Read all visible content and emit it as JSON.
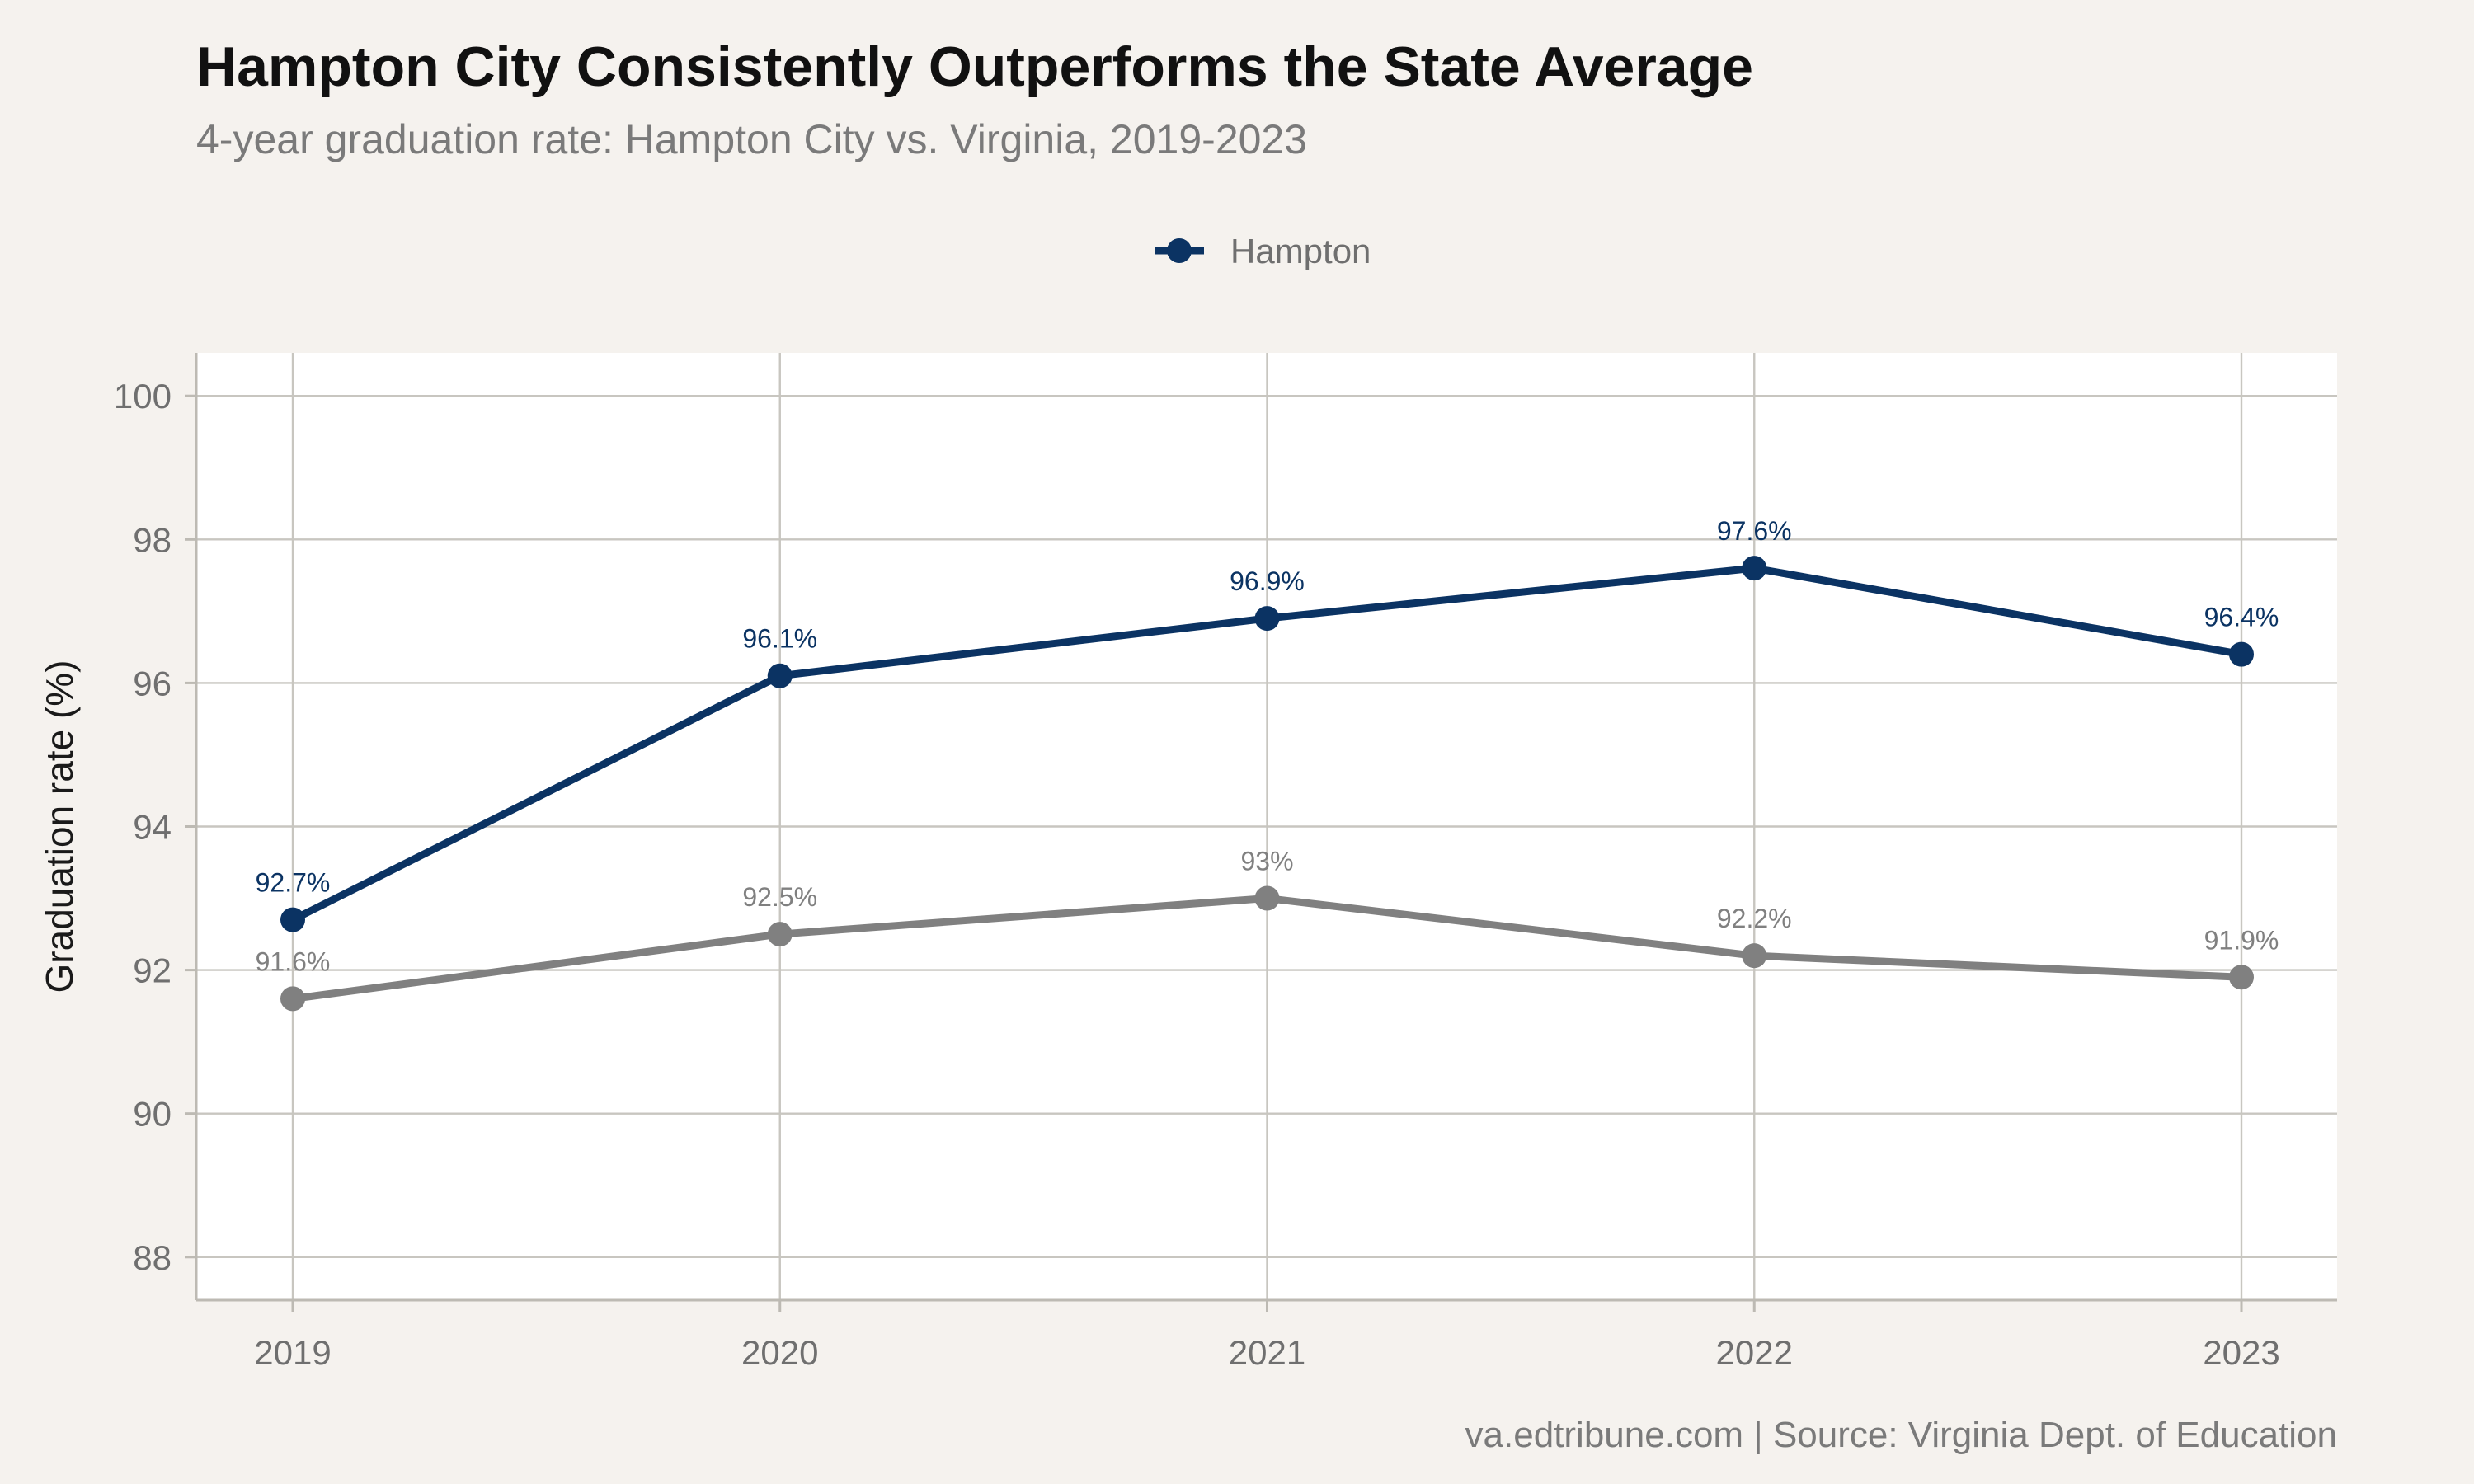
{
  "header": {
    "title": "Hampton City Consistently Outperforms the State Average",
    "subtitle": "4-year graduation rate: Hampton City vs. Virginia, 2019-2023"
  },
  "footer": {
    "caption": "va.edtribune.com | Source: Virginia Dept. of Education"
  },
  "colors": {
    "hampton": "#0b3363",
    "virginia": "#808080",
    "grid": "#c8c6c0",
    "panel": "#ffffff",
    "background": "#f5f2ee"
  },
  "chart_data": {
    "type": "line",
    "title": "Hampton City Consistently Outperforms the State Average",
    "subtitle": "4-year graduation rate: Hampton City vs. Virginia, 2019-2023",
    "xlabel": "",
    "ylabel": "Graduation rate (%)",
    "x": [
      "2019",
      "2020",
      "2021",
      "2022",
      "2023"
    ],
    "ylim": [
      87.4,
      100.6
    ],
    "yticks": [
      88,
      90,
      92,
      94,
      96,
      98,
      100
    ],
    "grid": true,
    "legend": {
      "position": "top-center",
      "entries": [
        "Hampton"
      ]
    },
    "series": [
      {
        "key": "hampton",
        "name": "Hampton",
        "color": "#0b3363",
        "values": [
          92.7,
          96.1,
          96.9,
          97.6,
          96.4
        ],
        "labels": [
          "92.7%",
          "96.1%",
          "96.9%",
          "97.6%",
          "96.4%"
        ]
      },
      {
        "key": "virginia",
        "color": "#808080",
        "values": [
          91.6,
          92.5,
          93.0,
          92.2,
          91.9
        ],
        "labels": [
          "91.6%",
          "92.5%",
          "93%",
          "92.2%",
          "91.9%"
        ]
      }
    ]
  }
}
